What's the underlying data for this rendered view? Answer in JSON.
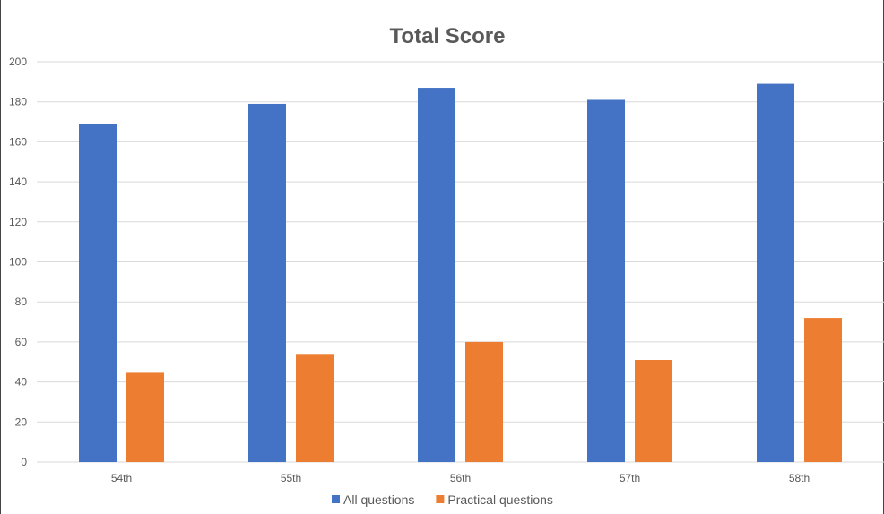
{
  "chart_data": {
    "type": "bar",
    "title": "Total Score",
    "xlabel": "",
    "ylabel": "",
    "categories": [
      "54th",
      "55th",
      "56th",
      "57th",
      "58th"
    ],
    "series": [
      {
        "name": "All questions",
        "color": "#4472C4",
        "values": [
          169,
          179,
          187,
          181,
          189
        ]
      },
      {
        "name": "Practical questions",
        "color": "#ED7D31",
        "values": [
          45,
          54,
          60,
          51,
          72
        ]
      }
    ],
    "ylim": [
      0,
      200
    ],
    "yticks": [
      "0",
      "20",
      "40",
      "60",
      "80",
      "100",
      "120",
      "140",
      "160",
      "180",
      "200"
    ],
    "grid": true,
    "legend": "bottom"
  }
}
